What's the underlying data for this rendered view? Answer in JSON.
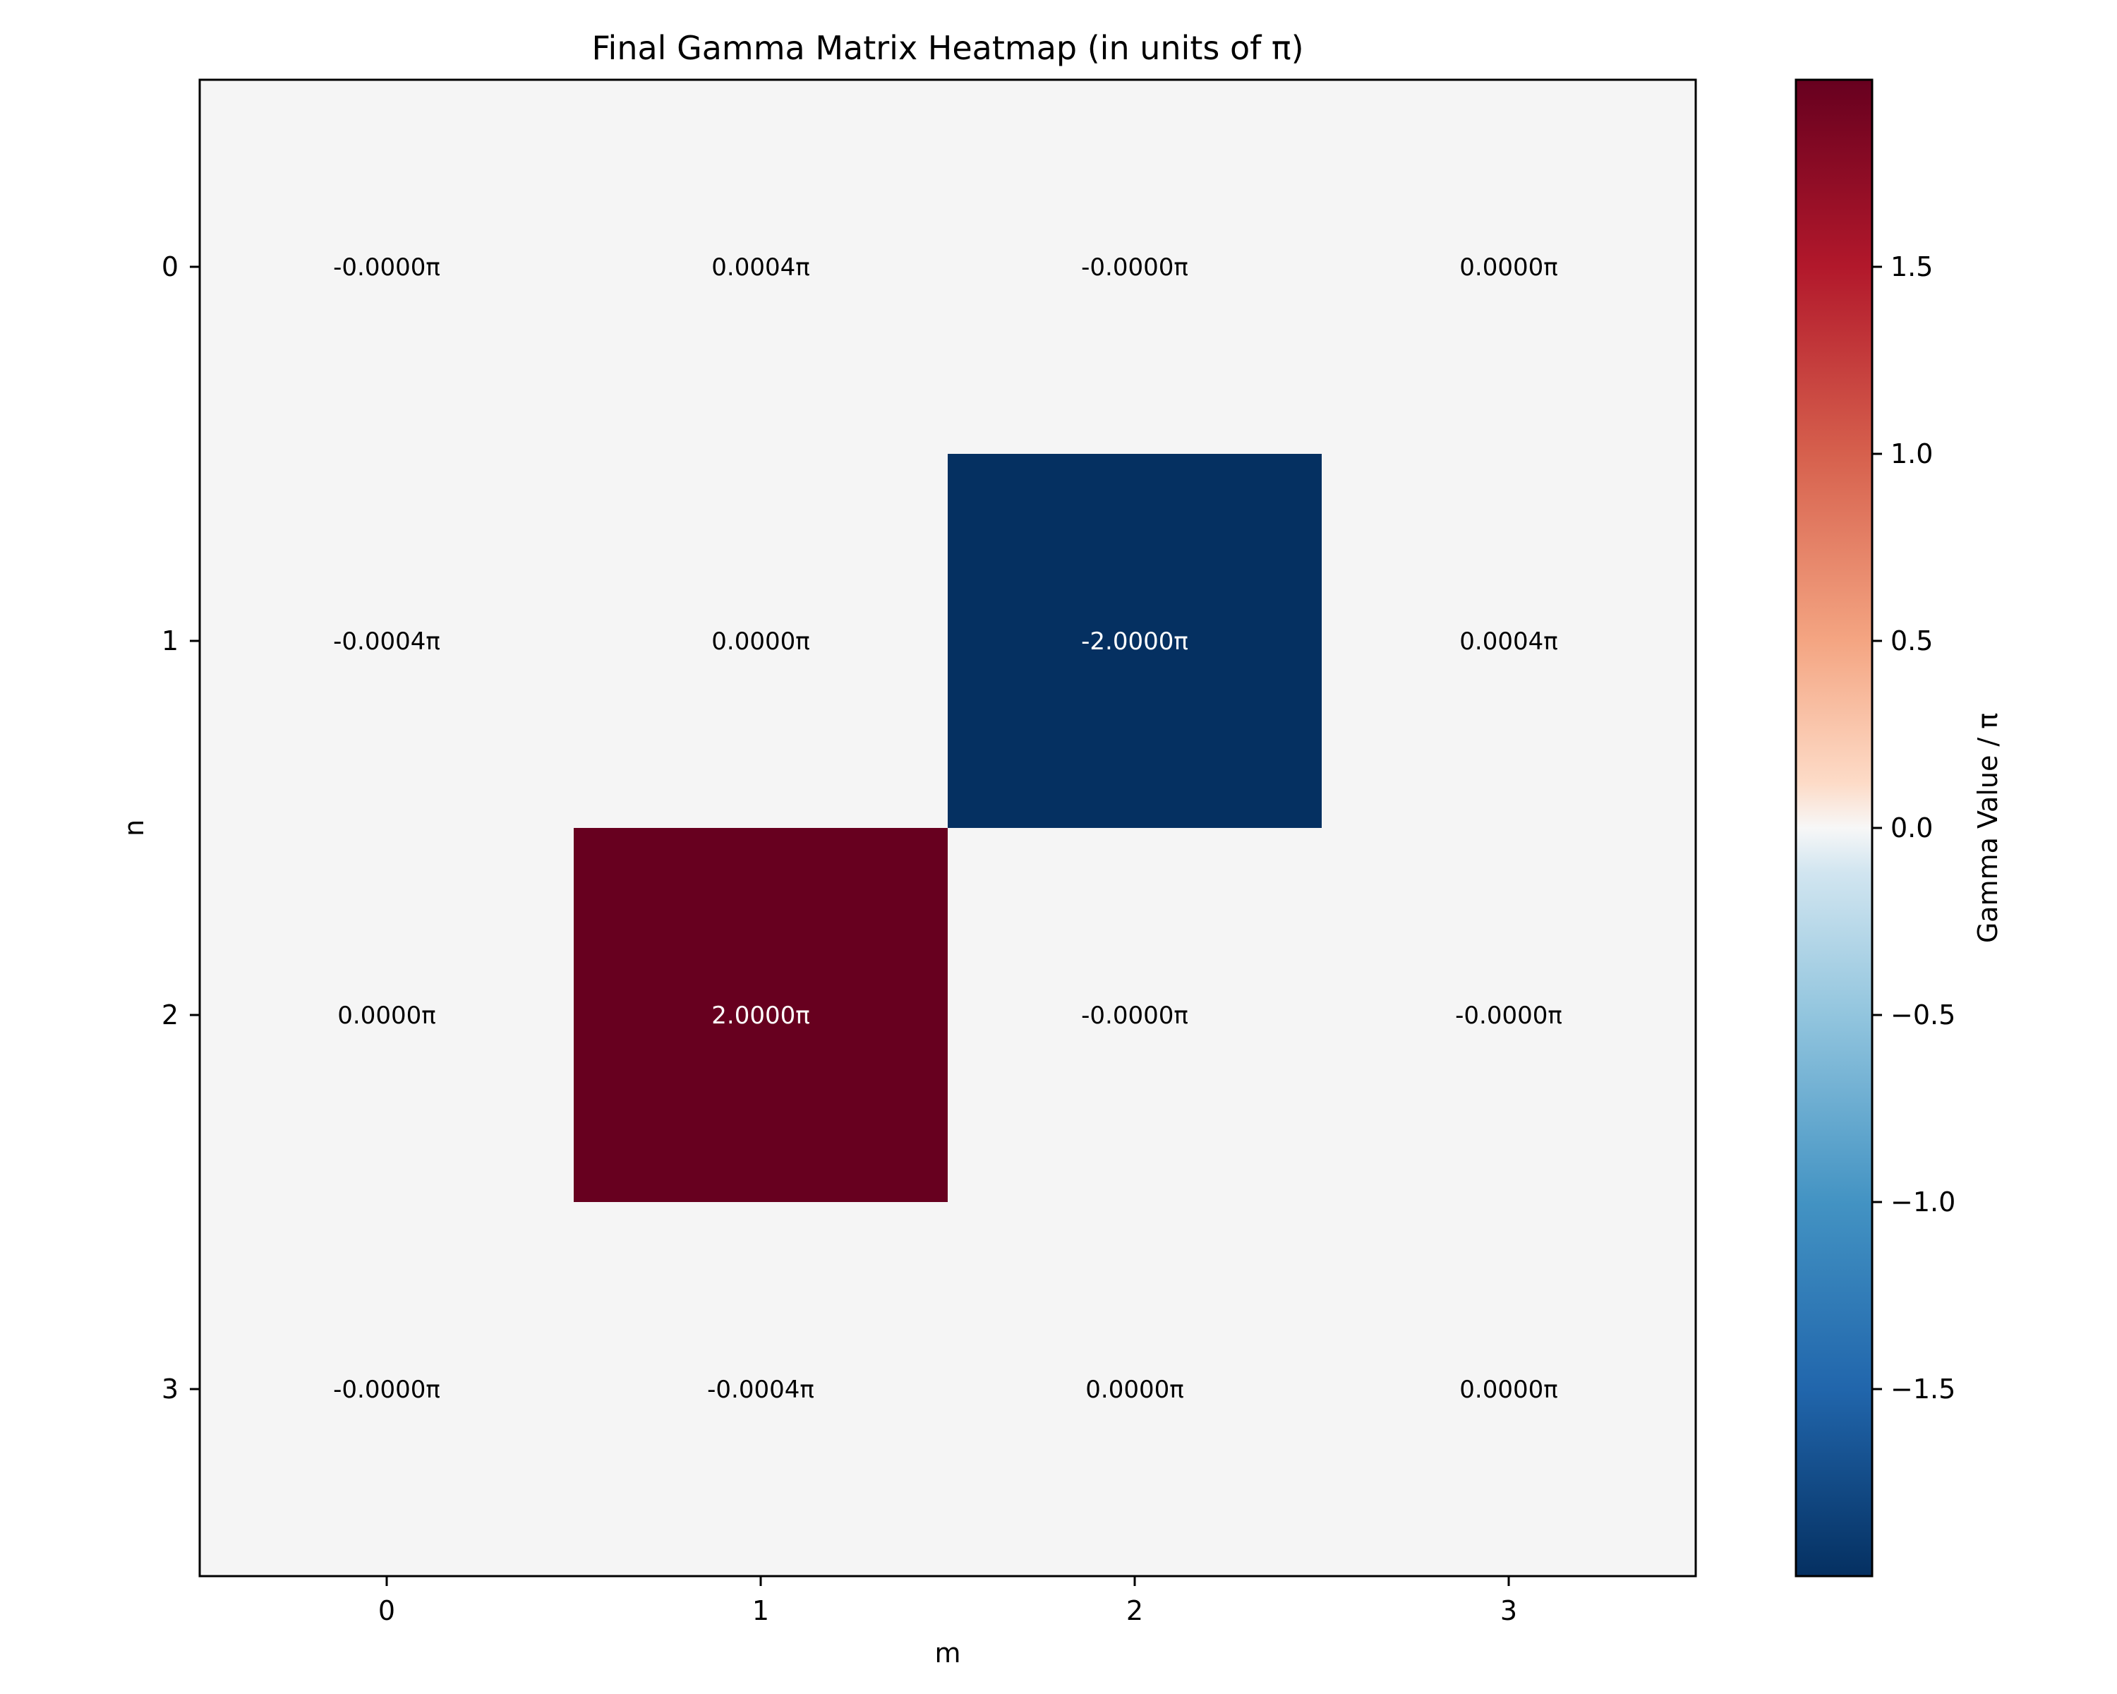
{
  "chart_data": {
    "type": "heatmap",
    "title": "Final Gamma Matrix Heatmap (in units of π)",
    "xlabel": "m",
    "ylabel": "n",
    "x_ticks": [
      "0",
      "1",
      "2",
      "3"
    ],
    "y_ticks": [
      "0",
      "1",
      "2",
      "3"
    ],
    "values": [
      [
        -0.0,
        0.0004,
        -0.0,
        0.0
      ],
      [
        -0.0004,
        0.0,
        -2.0,
        0.0004
      ],
      [
        0.0,
        2.0,
        -0.0,
        -0.0
      ],
      [
        -0.0,
        -0.0004,
        0.0,
        0.0
      ]
    ],
    "cell_labels": [
      [
        "-0.0000π",
        "0.0004π",
        "-0.0000π",
        "0.0000π"
      ],
      [
        "-0.0004π",
        "0.0000π",
        "-2.0000π",
        "0.0004π"
      ],
      [
        "0.0000π",
        "2.0000π",
        "-0.0000π",
        "-0.0000π"
      ],
      [
        "-0.0000π",
        "-0.0004π",
        "0.0000π",
        "0.0000π"
      ]
    ],
    "colormap": "RdBu_r",
    "color_range": [
      -2.0,
      2.0
    ],
    "colorbar": {
      "label": "Gamma Value / π",
      "ticks": [
        -1.5,
        -1.0,
        -0.5,
        0.0,
        0.5,
        1.0,
        1.5
      ],
      "tick_labels": [
        "−1.5",
        "−1.0",
        "−0.5",
        "0.0",
        "0.5",
        "1.0",
        "1.5"
      ]
    },
    "colors": {
      "neutral": "#f5f5f5",
      "max": "#67001f",
      "min": "#053061",
      "light_text": "#ffffff",
      "dark_text": "#000000"
    }
  }
}
